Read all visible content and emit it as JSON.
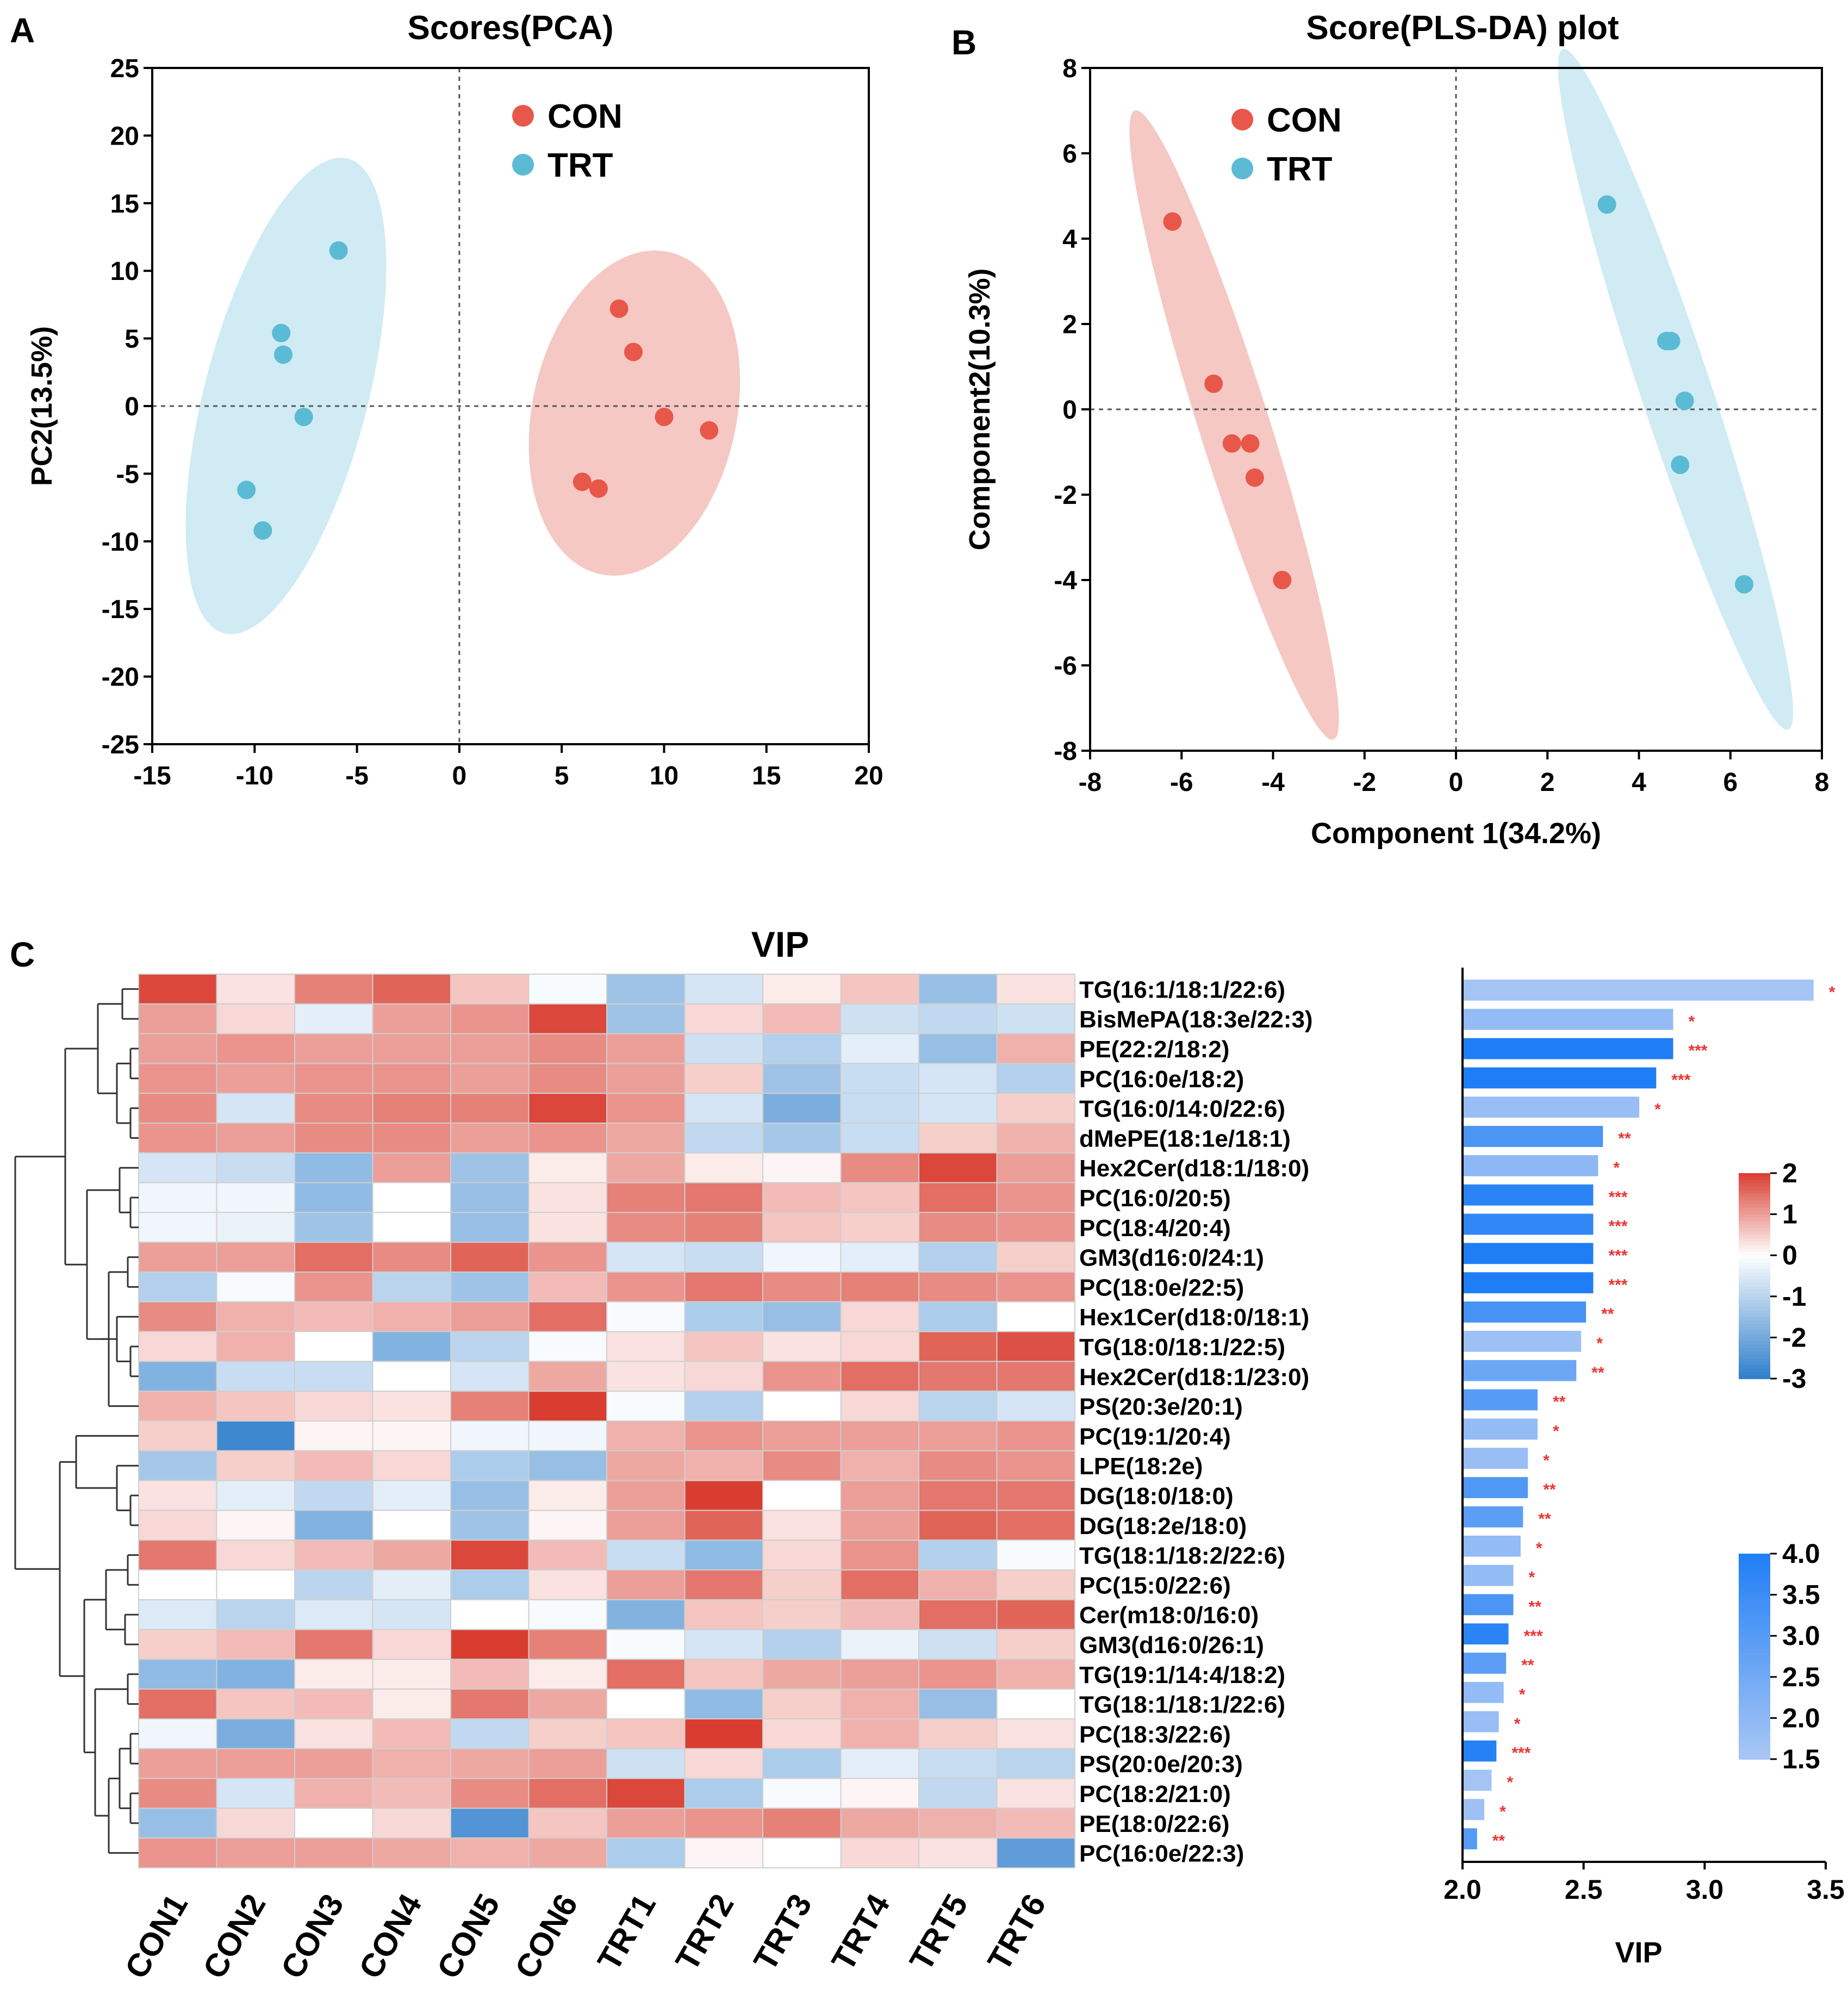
{
  "chart_data": [
    {
      "panel": "A",
      "type": "scatter",
      "title": "Scores(PCA)",
      "xlabel": "",
      "ylabel": "PC2(13.5%)",
      "xlim": [
        -15,
        20
      ],
      "ylim": [
        -25,
        25
      ],
      "xticks": [
        -15,
        -10,
        -5,
        0,
        5,
        10,
        15,
        20
      ],
      "yticks": [
        25,
        20,
        15,
        10,
        5,
        0,
        -5,
        -10,
        -15,
        -20,
        -25
      ],
      "legend": "top-center",
      "series": [
        {
          "name": "CON",
          "color": "#e8584a",
          "ellipse_color": "#f2b9b3",
          "points": [
            [
              7.8,
              7.2
            ],
            [
              8.5,
              4.0
            ],
            [
              10.0,
              -0.8
            ],
            [
              12.2,
              -1.8
            ],
            [
              6.0,
              -5.6
            ],
            [
              6.8,
              -6.1
            ]
          ]
        },
        {
          "name": "TRT",
          "color": "#5bbbd4",
          "ellipse_color": "#c3e6ef",
          "points": [
            [
              -5.9,
              11.5
            ],
            [
              -8.7,
              5.4
            ],
            [
              -8.6,
              3.8
            ],
            [
              -7.6,
              -0.8
            ],
            [
              -10.4,
              -6.2
            ],
            [
              -9.6,
              -9.2
            ]
          ]
        }
      ]
    },
    {
      "panel": "B",
      "type": "scatter",
      "title": "Score(PLS-DA) plot",
      "xlabel": "Component 1(34.2%)",
      "ylabel": "Component2(10.3%)",
      "xlim": [
        -8,
        8
      ],
      "ylim": [
        -8,
        8
      ],
      "xticks": [
        -8,
        -6,
        -4,
        -2,
        0,
        2,
        4,
        6,
        8
      ],
      "yticks": [
        8,
        6,
        4,
        2,
        0,
        -2,
        -4,
        -6,
        -8
      ],
      "legend": "top-left",
      "series": [
        {
          "name": "CON",
          "color": "#e8584a",
          "ellipse_color": "#f2b9b3",
          "points": [
            [
              -6.2,
              4.4
            ],
            [
              -5.3,
              0.6
            ],
            [
              -4.9,
              -0.8
            ],
            [
              -4.5,
              -0.8
            ],
            [
              -4.4,
              -1.6
            ],
            [
              -3.8,
              -4.0
            ]
          ]
        },
        {
          "name": "TRT",
          "color": "#5bbbd4",
          "ellipse_color": "#c3e6ef",
          "points": [
            [
              3.3,
              4.8
            ],
            [
              4.6,
              1.6
            ],
            [
              4.7,
              1.6
            ],
            [
              5.0,
              0.2
            ],
            [
              4.9,
              -1.3
            ],
            [
              6.3,
              -4.1
            ]
          ]
        }
      ]
    },
    {
      "panel": "C",
      "type": "heatmap",
      "title": "VIP",
      "columns": [
        "CON1",
        "CON2",
        "CON3",
        "CON4",
        "CON5",
        "CON6",
        "TRT1",
        "TRT2",
        "TRT3",
        "TRT4",
        "TRT5",
        "TRT6"
      ],
      "rows": [
        "TG(16:1/18:1/22:6)",
        "BisMePA(18:3e/22:3)",
        "PE(22:2/18:2)",
        "PC(16:0e/18:2)",
        "TG(16:0/14:0/22:6)",
        "dMePE(18:1e/18:1)",
        "Hex2Cer(d18:1/18:0)",
        "PC(16:0/20:5)",
        "PC(18:4/20:4)",
        "GM3(d16:0/24:1)",
        "PC(18:0e/22:5)",
        "Hex1Cer(d18:0/18:1)",
        "TG(18:0/18:1/22:5)",
        "Hex2Cer(d18:1/23:0)",
        "PS(20:3e/20:1)",
        "PC(19:1/20:4)",
        "LPE(18:2e)",
        "DG(18:0/18:0)",
        "DG(18:2e/18:0)",
        "TG(18:1/18:2/22:6)",
        "PC(15:0/22:6)",
        "Cer(m18:0/16:0)",
        "GM3(d16:0/26:1)",
        "TG(19:1/14:4/18:2)",
        "TG(18:1/18:1/22:6)",
        "PC(18:3/22:6)",
        "PS(20:0e/20:3)",
        "PC(18:2/21:0)",
        "PE(18:0/22:6)",
        "PC(16:0e/22:3)"
      ],
      "values": [
        [
          1.9,
          0.3,
          1.3,
          1.6,
          0.6,
          -0.1,
          -1.4,
          -0.6,
          0.2,
          0.6,
          -1.5,
          0.3
        ],
        [
          1.0,
          0.4,
          -0.4,
          1.0,
          1.1,
          1.9,
          -1.4,
          0.4,
          0.7,
          -0.7,
          -0.9,
          -0.7
        ],
        [
          1.0,
          1.1,
          1.0,
          1.0,
          1.0,
          1.2,
          1.0,
          -0.7,
          -1.1,
          -0.4,
          -1.5,
          0.8
        ],
        [
          1.1,
          1.0,
          1.1,
          1.1,
          1.0,
          1.2,
          1.0,
          0.5,
          -1.4,
          -0.8,
          -0.6,
          -1.1
        ],
        [
          1.2,
          -0.6,
          1.2,
          1.3,
          1.3,
          1.9,
          1.1,
          -0.6,
          -1.9,
          -0.8,
          -0.6,
          0.5
        ],
        [
          1.1,
          1.0,
          1.2,
          1.2,
          1.0,
          1.1,
          0.9,
          -0.9,
          -1.3,
          -0.8,
          0.5,
          0.8
        ],
        [
          -0.6,
          -0.8,
          -1.6,
          1.0,
          -1.4,
          0.2,
          0.9,
          0.2,
          0.1,
          1.2,
          1.9,
          1.0
        ],
        [
          -0.2,
          -0.2,
          -1.6,
          0.0,
          -1.5,
          0.3,
          1.3,
          1.4,
          0.7,
          0.6,
          1.5,
          1.1
        ],
        [
          -0.2,
          -0.3,
          -1.4,
          0.0,
          -1.5,
          0.3,
          1.2,
          1.3,
          0.6,
          0.5,
          1.2,
          1.1
        ],
        [
          1.0,
          1.0,
          1.5,
          1.2,
          1.6,
          1.1,
          -0.6,
          -0.8,
          -0.2,
          -0.4,
          -1.1,
          0.5
        ],
        [
          -1.1,
          -0.1,
          1.1,
          -1.0,
          -1.4,
          0.7,
          1.1,
          1.4,
          1.2,
          1.3,
          1.2,
          1.1
        ],
        [
          1.2,
          0.8,
          0.7,
          0.8,
          1.0,
          1.5,
          -0.1,
          -1.2,
          -1.5,
          0.4,
          -1.2,
          0.0
        ],
        [
          0.4,
          0.8,
          0.0,
          -1.8,
          -1.0,
          -0.1,
          0.3,
          0.6,
          0.3,
          0.4,
          1.6,
          1.8
        ],
        [
          -1.8,
          -0.8,
          -0.8,
          0.0,
          -0.6,
          0.9,
          0.3,
          0.4,
          1.1,
          1.5,
          1.4,
          1.4
        ],
        [
          0.8,
          0.6,
          0.4,
          0.3,
          1.3,
          2.0,
          -0.1,
          -1.1,
          0.0,
          0.4,
          -1.0,
          -0.6
        ],
        [
          0.5,
          -2.8,
          0.1,
          0.1,
          -0.2,
          -0.2,
          0.8,
          1.1,
          1.0,
          1.0,
          1.0,
          1.1
        ],
        [
          -1.3,
          0.5,
          0.7,
          0.4,
          -1.2,
          -1.5,
          0.9,
          0.8,
          1.2,
          0.8,
          1.2,
          1.1
        ],
        [
          0.3,
          -0.4,
          -0.9,
          -0.4,
          -1.5,
          0.2,
          1.0,
          2.0,
          0.0,
          1.0,
          1.4,
          1.4
        ],
        [
          0.4,
          0.1,
          -1.8,
          0.0,
          -1.4,
          0.1,
          1.0,
          1.6,
          0.3,
          1.0,
          1.6,
          1.5
        ],
        [
          1.4,
          0.4,
          0.7,
          0.9,
          1.9,
          0.7,
          -0.8,
          -1.6,
          0.4,
          1.1,
          -1.1,
          -0.1
        ],
        [
          0.0,
          0.0,
          -1.0,
          -0.4,
          -1.2,
          0.3,
          1.0,
          1.4,
          0.5,
          1.5,
          0.8,
          0.5
        ],
        [
          -0.5,
          -1.0,
          -0.5,
          -0.6,
          0.0,
          -0.1,
          -1.8,
          0.6,
          0.5,
          0.7,
          1.5,
          1.6
        ],
        [
          0.5,
          0.7,
          1.4,
          0.4,
          2.2,
          1.3,
          -0.1,
          -0.6,
          -1.1,
          -0.3,
          -0.7,
          0.5
        ],
        [
          -1.6,
          -1.8,
          0.2,
          0.2,
          0.7,
          0.2,
          1.5,
          0.6,
          0.9,
          1.0,
          1.1,
          0.8
        ],
        [
          1.5,
          0.6,
          0.7,
          0.2,
          1.4,
          0.9,
          0.0,
          -1.6,
          0.5,
          0.8,
          -1.5,
          0.0
        ],
        [
          -0.2,
          -1.9,
          0.3,
          0.7,
          -0.9,
          0.5,
          0.6,
          2.0,
          0.4,
          0.8,
          0.5,
          0.3
        ],
        [
          1.0,
          1.0,
          1.0,
          0.8,
          0.9,
          1.0,
          -0.7,
          0.4,
          -1.2,
          -0.4,
          -0.8,
          -1.0
        ],
        [
          1.2,
          -0.6,
          0.8,
          0.7,
          1.2,
          1.5,
          1.9,
          -1.2,
          -0.1,
          0.1,
          -0.9,
          0.3
        ],
        [
          -1.5,
          0.4,
          0.0,
          0.4,
          -2.5,
          0.6,
          1.0,
          1.1,
          1.3,
          0.9,
          0.8,
          0.7
        ],
        [
          1.1,
          1.0,
          1.0,
          0.9,
          0.8,
          0.9,
          -1.2,
          0.1,
          0.0,
          0.4,
          0.3,
          -2.3
        ]
      ],
      "color_scale": {
        "min": -3,
        "max": 2,
        "ticks": [
          2,
          1,
          0,
          -1,
          -2,
          -3
        ],
        "low": "#2f7fcc",
        "mid": "#ffffff",
        "high": "#d93d30"
      },
      "dendrogram": "row clustering, left side"
    },
    {
      "panel": "C",
      "type": "bar",
      "orientation": "horizontal",
      "xlabel": "VIP",
      "xlim": [
        2.0,
        3.5
      ],
      "xticks": [
        2.0,
        2.5,
        3.0,
        3.5
      ],
      "categories": [
        "TG(16:1/18:1/22:6)",
        "BisMePA(18:3e/22:3)",
        "PE(22:2/18:2)",
        "PC(16:0e/18:2)",
        "TG(16:0/14:0/22:6)",
        "dMePE(18:1e/18:1)",
        "Hex2Cer(d18:1/18:0)",
        "PC(16:0/20:5)",
        "PC(18:4/20:4)",
        "GM3(d16:0/24:1)",
        "PC(18:0e/22:5)",
        "Hex1Cer(d18:0/18:1)",
        "TG(18:0/18:1/22:5)",
        "Hex2Cer(d18:1/23:0)",
        "PS(20:3e/20:1)",
        "PC(19:1/20:4)",
        "LPE(18:2e)",
        "DG(18:0/18:0)",
        "DG(18:2e/18:0)",
        "TG(18:1/18:2/22:6)",
        "PC(15:0/22:6)",
        "Cer(m18:0/16:0)",
        "GM3(d16:0/26:1)",
        "TG(19:1/14:4/18:2)",
        "TG(18:1/18:1/22:6)",
        "PC(18:3/22:6)",
        "PS(20:0e/20:3)",
        "PC(18:2/21:0)",
        "PE(18:0/22:6)",
        "PC(16:0e/22:3)"
      ],
      "values": [
        3.45,
        2.87,
        2.87,
        2.8,
        2.73,
        2.58,
        2.56,
        2.54,
        2.54,
        2.54,
        2.54,
        2.51,
        2.49,
        2.47,
        2.31,
        2.31,
        2.27,
        2.27,
        2.25,
        2.24,
        2.21,
        2.21,
        2.19,
        2.18,
        2.17,
        2.15,
        2.14,
        2.12,
        2.09,
        2.06
      ],
      "color_values": [
        1.6,
        1.9,
        4.0,
        4.0,
        1.8,
        3.2,
        2.0,
        3.8,
        3.7,
        4.0,
        4.0,
        3.3,
        1.7,
        2.6,
        3.0,
        1.9,
        1.8,
        3.1,
        2.9,
        1.9,
        1.9,
        3.2,
        3.8,
        2.9,
        1.9,
        1.8,
        3.9,
        1.6,
        1.7,
        3.0
      ],
      "significance": [
        "*",
        "*",
        "***",
        "***",
        "*",
        "**",
        "*",
        "***",
        "***",
        "***",
        "***",
        "**",
        "*",
        "**",
        "**",
        "*",
        "*",
        "**",
        "**",
        "*",
        "*",
        "**",
        "***",
        "**",
        "*",
        "*",
        "***",
        "*",
        "*",
        "**"
      ],
      "color_scale": {
        "min": 1.5,
        "max": 4.0,
        "ticks": [
          4.0,
          3.5,
          3.0,
          2.5,
          2.0,
          1.5
        ],
        "low": "#a9c7f5",
        "high": "#1f7ef5"
      }
    }
  ],
  "panel_labels": {
    "a": "A",
    "b": "B",
    "c": "C"
  }
}
